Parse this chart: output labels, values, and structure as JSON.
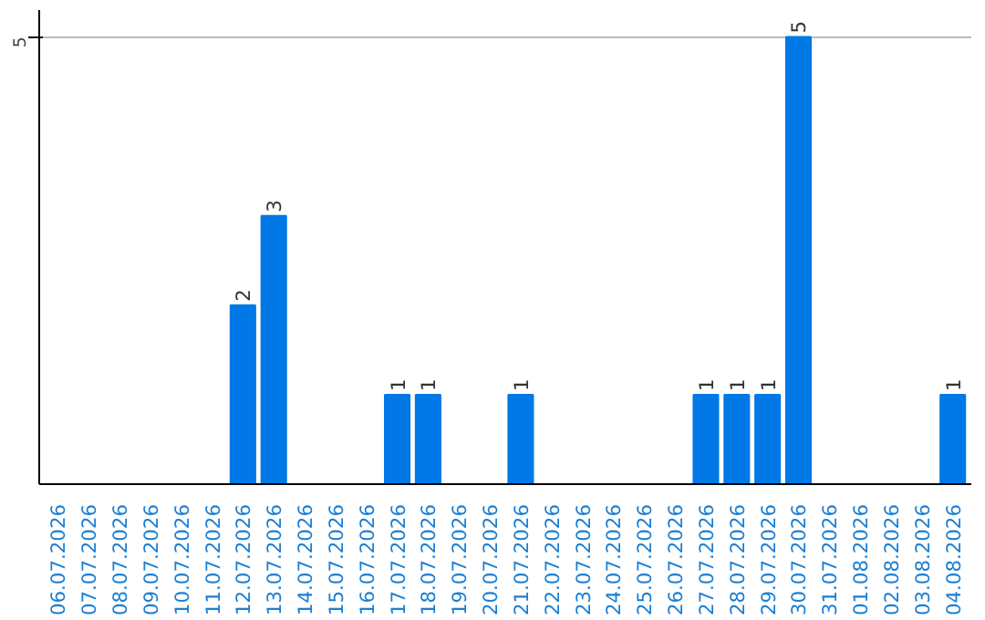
{
  "chart_data": {
    "type": "bar",
    "categories": [
      "06.07.2026",
      "07.07.2026",
      "08.07.2026",
      "09.07.2026",
      "10.07.2026",
      "11.07.2026",
      "12.07.2026",
      "13.07.2026",
      "14.07.2026",
      "15.07.2026",
      "16.07.2026",
      "17.07.2026",
      "18.07.2026",
      "19.07.2026",
      "20.07.2026",
      "21.07.2026",
      "22.07.2026",
      "23.07.2026",
      "24.07.2026",
      "25.07.2026",
      "26.07.2026",
      "27.07.2026",
      "28.07.2026",
      "29.07.2026",
      "30.07.2026",
      "31.07.2026",
      "01.08.2026",
      "02.08.2026",
      "03.08.2026",
      "04.08.2026"
    ],
    "values": [
      0,
      0,
      0,
      0,
      0,
      0,
      2,
      3,
      0,
      0,
      0,
      1,
      1,
      0,
      0,
      1,
      0,
      0,
      0,
      0,
      0,
      1,
      1,
      1,
      5,
      0,
      0,
      0,
      0,
      1
    ],
    "value_labels": [
      null,
      null,
      null,
      null,
      null,
      null,
      "2",
      "3",
      null,
      null,
      null,
      "1",
      "1",
      null,
      null,
      "1",
      null,
      null,
      null,
      null,
      null,
      "1",
      "1",
      "1",
      "5",
      null,
      null,
      null,
      null,
      "1"
    ],
    "color": "#0078e6",
    "ylim": [
      0,
      5.3
    ],
    "yticks": [
      5
    ],
    "grid": "y"
  }
}
